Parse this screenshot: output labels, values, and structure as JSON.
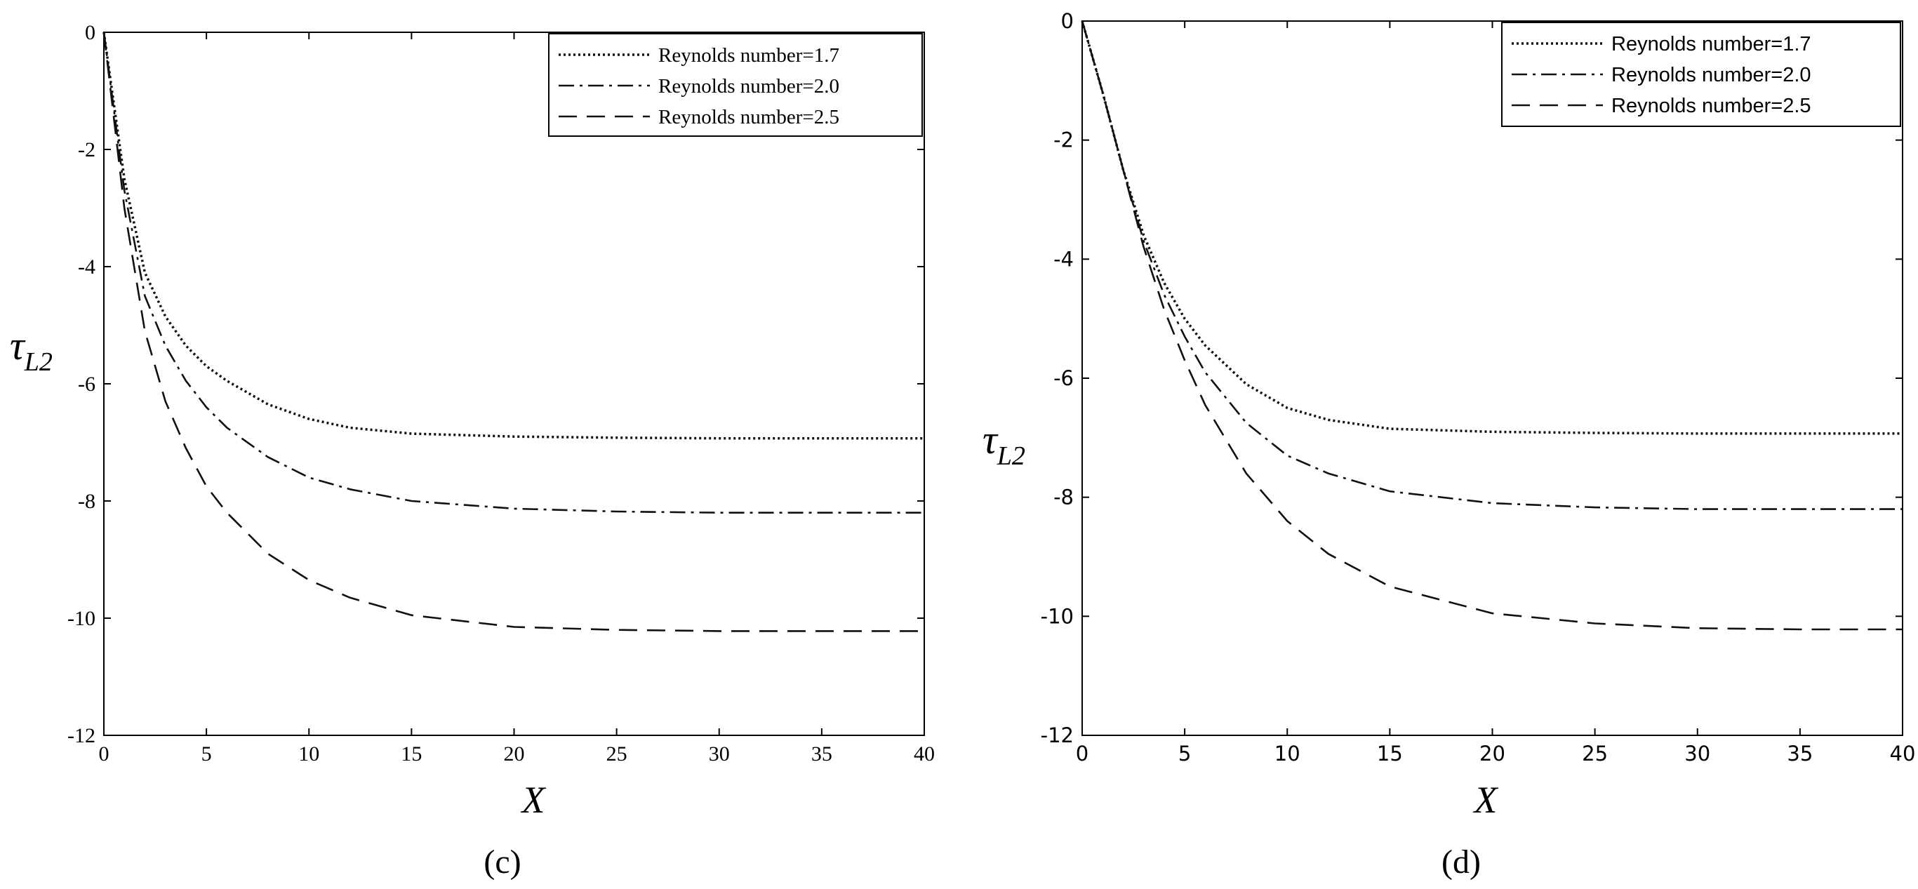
{
  "chart_data": [
    {
      "type": "line",
      "panel_label": "(c)",
      "xlabel": "X",
      "ylabel_main": "τ",
      "ylabel_sub": "L2",
      "xlim": [
        0,
        40
      ],
      "ylim": [
        -12,
        0
      ],
      "x_ticks": [
        "0",
        "5",
        "10",
        "15",
        "20",
        "25",
        "30",
        "35",
        "40"
      ],
      "y_ticks": [
        "0",
        "-2",
        "-4",
        "-6",
        "-8",
        "-10",
        "-12"
      ],
      "grid": false,
      "legend_position": "top-right",
      "series": [
        {
          "name": "Reynolds number=1.7",
          "style": "dotted",
          "x": [
            0,
            1,
            2,
            3,
            4,
            5,
            6,
            8,
            10,
            12,
            15,
            20,
            25,
            30,
            35,
            40
          ],
          "y": [
            0,
            -2.5,
            -4.1,
            -4.85,
            -5.35,
            -5.7,
            -5.95,
            -6.35,
            -6.6,
            -6.75,
            -6.85,
            -6.9,
            -6.92,
            -6.93,
            -6.93,
            -6.93
          ]
        },
        {
          "name": "Reynolds number=2.0",
          "style": "dashdot",
          "x": [
            0,
            1,
            2,
            3,
            4,
            5,
            6,
            8,
            10,
            12,
            15,
            20,
            25,
            30,
            35,
            40
          ],
          "y": [
            0,
            -2.7,
            -4.5,
            -5.35,
            -5.95,
            -6.4,
            -6.75,
            -7.25,
            -7.6,
            -7.8,
            -8.0,
            -8.13,
            -8.18,
            -8.2,
            -8.2,
            -8.2
          ]
        },
        {
          "name": "Reynolds number=2.5",
          "style": "dashed",
          "x": [
            0,
            1,
            2,
            3,
            4,
            5,
            6,
            8,
            10,
            12,
            15,
            20,
            25,
            30,
            35,
            40
          ],
          "y": [
            0,
            -3.0,
            -5.1,
            -6.3,
            -7.1,
            -7.75,
            -8.2,
            -8.9,
            -9.35,
            -9.65,
            -9.95,
            -10.15,
            -10.2,
            -10.22,
            -10.22,
            -10.22
          ]
        }
      ]
    },
    {
      "type": "line",
      "panel_label": "(d)",
      "xlabel": "X",
      "ylabel_main": "τ",
      "ylabel_sub": "L2",
      "xlim": [
        0,
        40
      ],
      "ylim": [
        -12,
        0
      ],
      "x_ticks": [
        "0",
        "5",
        "10",
        "15",
        "20",
        "25",
        "30",
        "35",
        "40"
      ],
      "y_ticks": [
        "0",
        "-2",
        "-4",
        "-6",
        "-8",
        "-10",
        "-12"
      ],
      "grid": false,
      "legend_position": "top-right",
      "series": [
        {
          "name": "Reynolds number=1.7",
          "style": "dotted",
          "x": [
            0,
            1,
            2,
            3,
            4,
            5,
            6,
            8,
            10,
            12,
            15,
            20,
            25,
            30,
            35,
            40
          ],
          "y": [
            0,
            -1.2,
            -2.5,
            -3.6,
            -4.4,
            -5.0,
            -5.45,
            -6.1,
            -6.5,
            -6.7,
            -6.85,
            -6.9,
            -6.92,
            -6.93,
            -6.93,
            -6.93
          ]
        },
        {
          "name": "Reynolds number=2.0",
          "style": "dashdot",
          "x": [
            0,
            1,
            2,
            3,
            4,
            5,
            6,
            8,
            10,
            12,
            15,
            20,
            25,
            30,
            35,
            40
          ],
          "y": [
            0,
            -1.2,
            -2.5,
            -3.7,
            -4.6,
            -5.3,
            -5.9,
            -6.75,
            -7.3,
            -7.6,
            -7.9,
            -8.1,
            -8.17,
            -8.2,
            -8.2,
            -8.2
          ]
        },
        {
          "name": "Reynolds number=2.5",
          "style": "dashed",
          "x": [
            0,
            1,
            2,
            3,
            4,
            5,
            6,
            8,
            10,
            12,
            15,
            20,
            25,
            30,
            35,
            40
          ],
          "y": [
            0,
            -1.2,
            -2.5,
            -3.8,
            -4.85,
            -5.7,
            -6.45,
            -7.6,
            -8.4,
            -8.95,
            -9.5,
            -9.95,
            -10.12,
            -10.2,
            -10.22,
            -10.22
          ]
        }
      ]
    }
  ]
}
